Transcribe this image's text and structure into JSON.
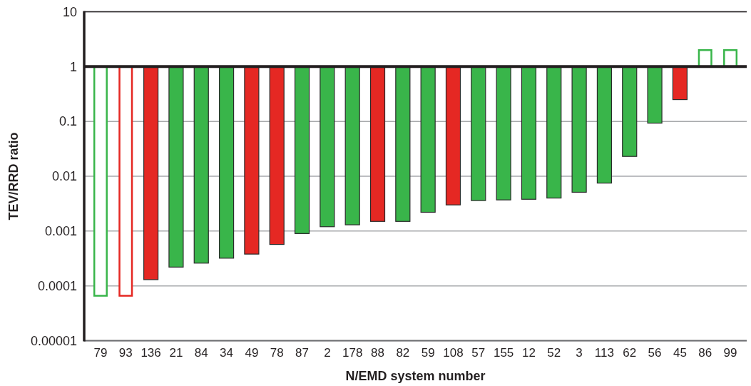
{
  "chart_data": {
    "type": "bar",
    "xlabel": "N/EMD system number",
    "ylabel": "TEV/RRD ratio",
    "categories": [
      "79",
      "93",
      "136",
      "21",
      "84",
      "34",
      "49",
      "78",
      "87",
      "2",
      "178",
      "88",
      "82",
      "59",
      "108",
      "57",
      "155",
      "12",
      "52",
      "3",
      "113",
      "62",
      "56",
      "45",
      "86",
      "99"
    ],
    "series": [
      {
        "values": [
          null,
          null,
          -0.99987,
          -0.99978,
          -0.99974,
          -0.99968,
          -0.99962,
          -0.99943,
          -0.9991,
          -0.9988,
          -0.9987,
          -0.9985,
          -0.9985,
          -0.9978,
          -0.997,
          -0.9964,
          -0.9963,
          -0.9962,
          -0.996,
          -0.9949,
          -0.9925,
          -0.977,
          -0.907,
          -0.75,
          null,
          null
        ],
        "base": [
          null,
          null,
          1,
          1,
          1,
          1,
          1,
          1,
          1,
          1,
          1,
          1,
          1,
          1,
          1,
          1,
          1,
          1,
          1,
          1,
          1,
          1,
          1,
          1,
          null,
          null
        ],
        "colors": [
          null,
          null,
          "#e52823",
          "#39b54a",
          "#39b54a",
          "#39b54a",
          "#e52823",
          "#e52823",
          "#39b54a",
          "#39b54a",
          "#39b54a",
          "#e52823",
          "#39b54a",
          "#39b54a",
          "#e52823",
          "#39b54a",
          "#39b54a",
          "#39b54a",
          "#39b54a",
          "#39b54a",
          "#39b54a",
          "#39b54a",
          "#39b54a",
          "#e52823",
          null,
          null
        ]
      },
      {
        "values": [
          -0.999934,
          -0.999934,
          null,
          null,
          null,
          null,
          null,
          null,
          null,
          null,
          null,
          null,
          null,
          null,
          null,
          null,
          null,
          null,
          null,
          null,
          null,
          null,
          null,
          null,
          1,
          1
        ],
        "base": [
          1,
          1,
          null,
          null,
          null,
          null,
          null,
          null,
          null,
          null,
          null,
          null,
          null,
          null,
          null,
          null,
          null,
          null,
          null,
          null,
          null,
          null,
          null,
          null,
          1,
          1
        ],
        "colors": [
          "#39b54a",
          "#e52823",
          null,
          null,
          null,
          null,
          null,
          null,
          null,
          null,
          null,
          null,
          null,
          null,
          null,
          null,
          null,
          null,
          null,
          null,
          null,
          null,
          null,
          null,
          "#39b54a",
          "#39b54a"
        ],
        "line_style": "solid"
      }
    ],
    "log": true,
    "ylim": [
      1e-05,
      10
    ],
    "yticks": [
      {
        "value": 1e-05,
        "label": "0.00001"
      },
      0.0001,
      0.001,
      0.01,
      0.1,
      1,
      10
    ],
    "grid": "y",
    "ref_lines": [
      {
        "axis": "y",
        "value": 1,
        "color": "#231f20"
      }
    ]
  }
}
